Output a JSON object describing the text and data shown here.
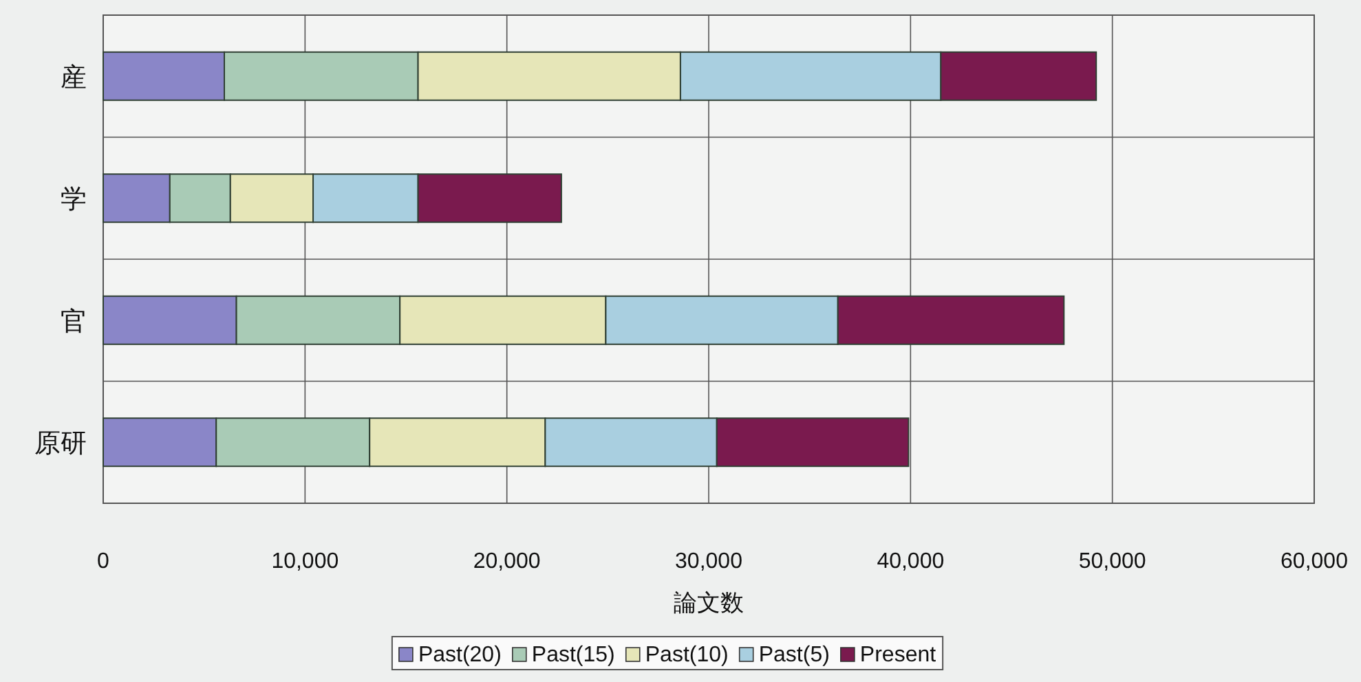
{
  "chart_data": {
    "type": "bar",
    "orientation": "horizontal",
    "stacked": true,
    "categories": [
      "産",
      "学",
      "官",
      "原研"
    ],
    "series": [
      {
        "name": "Past(20)",
        "color": "#8a86c8",
        "values": [
          6000,
          3300,
          6600,
          5600
        ]
      },
      {
        "name": "Past(15)",
        "color": "#a9cbb6",
        "values": [
          9600,
          3000,
          8100,
          7600
        ]
      },
      {
        "name": "Past(10)",
        "color": "#e6e6b8",
        "values": [
          13000,
          4100,
          10200,
          8700
        ]
      },
      {
        "name": "Past(5)",
        "color": "#a9cfe0",
        "values": [
          12900,
          5200,
          11500,
          8500
        ]
      },
      {
        "name": "Present",
        "color": "#7a1a4e",
        "values": [
          7700,
          7100,
          11200,
          9500
        ]
      }
    ],
    "xlabel": "論文数",
    "xlim": [
      0,
      60000
    ],
    "xticks": [
      {
        "value": 0,
        "label": "0"
      },
      {
        "value": 10000,
        "label": "10,000"
      },
      {
        "value": 20000,
        "label": "20,000"
      },
      {
        "value": 30000,
        "label": "30,000"
      },
      {
        "value": 40000,
        "label": "40,000"
      },
      {
        "value": 50000,
        "label": "50,000"
      },
      {
        "value": 60000,
        "label": "60,000"
      }
    ],
    "grid": true,
    "legend": "bottom"
  }
}
